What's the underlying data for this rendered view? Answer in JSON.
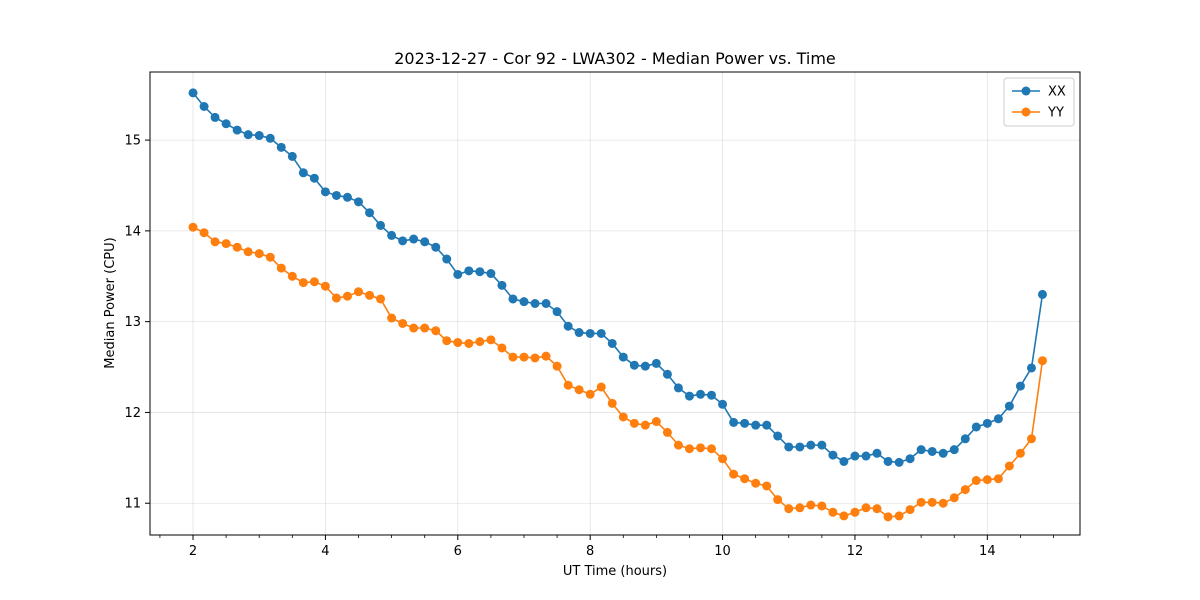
{
  "chart_data": {
    "type": "line",
    "title": "2023-12-27 - Cor 92 - LWA302 - Median Power vs. Time",
    "xlabel": "UT Time (hours)",
    "ylabel": "Median Power (CPU)",
    "xlim": [
      1.35,
      15.4
    ],
    "ylim": [
      10.65,
      15.75
    ],
    "xticks": [
      2,
      4,
      6,
      8,
      10,
      12,
      14
    ],
    "xtick_labels": [
      "2",
      "4",
      "6",
      "8",
      "10",
      "12",
      "14"
    ],
    "yticks": [
      11,
      12,
      13,
      14,
      15
    ],
    "ytick_labels": [
      "11",
      "12",
      "13",
      "14",
      "15"
    ],
    "grid": true,
    "legend_position": "top-right",
    "x": [
      2.0,
      2.167,
      2.333,
      2.5,
      2.667,
      2.833,
      3.0,
      3.167,
      3.333,
      3.5,
      3.667,
      3.833,
      4.0,
      4.167,
      4.333,
      4.5,
      4.667,
      4.833,
      5.0,
      5.167,
      5.333,
      5.5,
      5.667,
      5.833,
      6.0,
      6.167,
      6.333,
      6.5,
      6.667,
      6.833,
      7.0,
      7.167,
      7.333,
      7.5,
      7.667,
      7.833,
      8.0,
      8.167,
      8.333,
      8.5,
      8.667,
      8.833,
      9.0,
      9.167,
      9.333,
      9.5,
      9.667,
      9.833,
      10.0,
      10.167,
      10.333,
      10.5,
      10.667,
      10.833,
      11.0,
      11.167,
      11.333,
      11.5,
      11.667,
      11.833,
      12.0,
      12.167,
      12.333,
      12.5,
      12.667,
      12.833,
      13.0,
      13.167,
      13.333,
      13.5,
      13.667,
      13.833,
      14.0,
      14.167,
      14.333,
      14.5,
      14.667,
      14.833
    ],
    "series": [
      {
        "name": "XX",
        "color": "#1f77b4",
        "values": [
          15.52,
          15.37,
          15.25,
          15.18,
          15.11,
          15.06,
          15.05,
          15.02,
          14.92,
          14.82,
          14.64,
          14.58,
          14.43,
          14.39,
          14.37,
          14.32,
          14.2,
          14.06,
          13.95,
          13.89,
          13.91,
          13.88,
          13.82,
          13.69,
          13.52,
          13.56,
          13.55,
          13.53,
          13.4,
          13.25,
          13.22,
          13.2,
          13.2,
          13.11,
          12.95,
          12.88,
          12.87,
          12.87,
          12.76,
          12.61,
          12.52,
          12.51,
          12.54,
          12.42,
          12.27,
          12.18,
          12.2,
          12.19,
          12.09,
          11.89,
          11.88,
          11.86,
          11.86,
          11.74,
          11.62,
          11.62,
          11.64,
          11.64,
          11.53,
          11.46,
          11.52,
          11.52,
          11.55,
          11.46,
          11.45,
          11.49,
          11.59,
          11.57,
          11.55,
          11.59,
          11.71,
          11.84,
          11.88,
          11.93,
          12.07,
          12.29,
          12.49,
          13.3
        ]
      },
      {
        "name": "YY",
        "color": "#ff7f0e",
        "values": [
          14.04,
          13.98,
          13.88,
          13.86,
          13.82,
          13.77,
          13.75,
          13.71,
          13.59,
          13.5,
          13.43,
          13.44,
          13.39,
          13.26,
          13.28,
          13.33,
          13.29,
          13.25,
          13.04,
          12.98,
          12.93,
          12.93,
          12.9,
          12.79,
          12.77,
          12.76,
          12.78,
          12.8,
          12.71,
          12.61,
          12.61,
          12.6,
          12.62,
          12.51,
          12.3,
          12.25,
          12.2,
          12.28,
          12.1,
          11.95,
          11.88,
          11.86,
          11.9,
          11.78,
          11.64,
          11.6,
          11.61,
          11.6,
          11.49,
          11.32,
          11.27,
          11.22,
          11.19,
          11.04,
          10.94,
          10.95,
          10.98,
          10.97,
          10.9,
          10.86,
          10.9,
          10.95,
          10.94,
          10.85,
          10.86,
          10.93,
          11.01,
          11.01,
          11.0,
          11.06,
          11.15,
          11.25,
          11.26,
          11.27,
          11.41,
          11.55,
          11.71,
          12.57
        ]
      }
    ]
  }
}
